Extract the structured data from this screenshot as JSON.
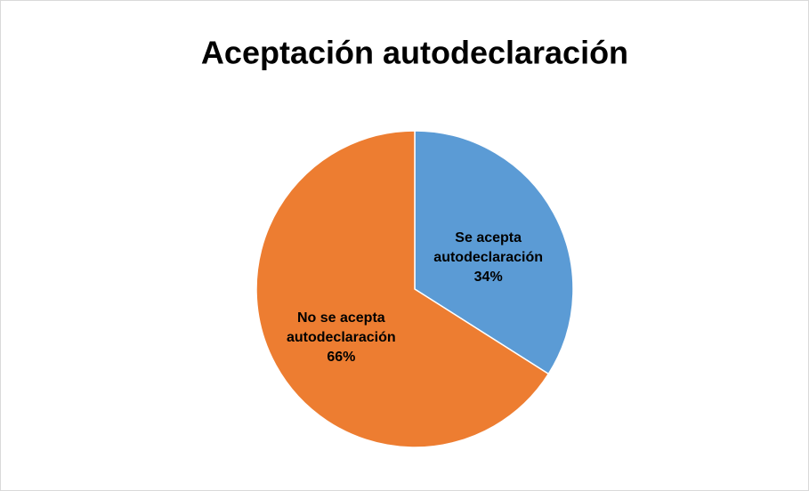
{
  "chart_data": {
    "type": "pie",
    "title": "Aceptación autodeclaración",
    "categories": [
      "Se acepta autodeclaración",
      "No se acepta autodeclaración"
    ],
    "values": [
      34,
      66
    ],
    "value_labels": [
      "34%",
      "66%"
    ],
    "colors": [
      "#5b9bd5",
      "#ed7d31"
    ]
  }
}
